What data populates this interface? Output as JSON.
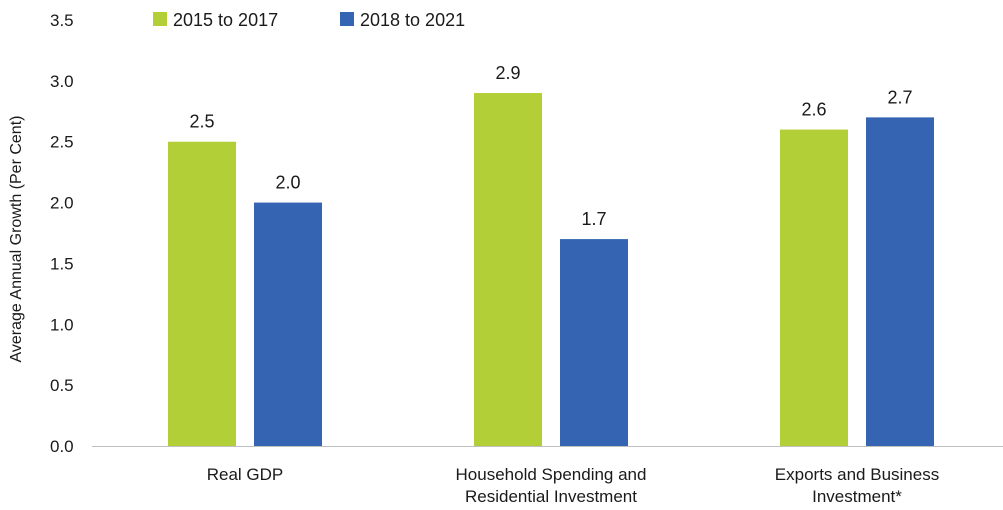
{
  "chart_data": {
    "type": "bar",
    "title": "",
    "xlabel": "",
    "ylabel": "Average Annual Growth (Per Cent)",
    "ylim": [
      0,
      3.5
    ],
    "yticks": [
      0.0,
      0.5,
      1.0,
      1.5,
      2.0,
      2.5,
      3.0,
      3.5
    ],
    "grid": false,
    "legend_position": "top-left",
    "categories": [
      [
        "Real GDP"
      ],
      [
        "Household Spending and",
        "Residential Investment"
      ],
      [
        "Exports and Business",
        "Investment*"
      ]
    ],
    "series": [
      {
        "name": "2015 to 2017",
        "color": "#b3cf38",
        "values": [
          2.5,
          2.9,
          2.6
        ]
      },
      {
        "name": "2018 to 2021",
        "color": "#3565b2",
        "values": [
          2.0,
          1.7,
          2.7
        ]
      }
    ]
  }
}
